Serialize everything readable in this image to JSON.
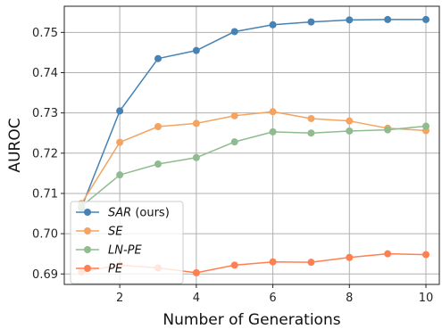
{
  "chart_data": {
    "type": "line",
    "xlabel": "Number of Generations",
    "ylabel": "AUROC",
    "x": [
      1,
      2,
      3,
      4,
      5,
      6,
      7,
      8,
      9,
      10
    ],
    "xlim": [
      0.55,
      10.35
    ],
    "ylim": [
      0.6874,
      0.7565
    ],
    "xticks": [
      2,
      4,
      6,
      8,
      10
    ],
    "yticks": [
      0.69,
      0.7,
      0.71,
      0.72,
      0.73,
      0.74,
      0.75
    ],
    "yticklabels": [
      "0.69",
      "0.70",
      "0.71",
      "0.72",
      "0.73",
      "0.74",
      "0.75"
    ],
    "grid": true,
    "legend_position": "lower-left",
    "series": [
      {
        "name": "SAR",
        "name_suffix": " (ours)",
        "color": "#4682b4",
        "values": [
          0.7065,
          0.7305,
          0.7435,
          0.7455,
          0.7502,
          0.7519,
          0.7526,
          0.7531,
          0.7532,
          0.7532
        ]
      },
      {
        "name": "SE",
        "name_suffix": "",
        "color": "#f4a460",
        "values": [
          0.7075,
          0.7227,
          0.7266,
          0.7274,
          0.7293,
          0.7303,
          0.7286,
          0.728,
          0.7262,
          0.7256
        ]
      },
      {
        "name": "LN-PE",
        "name_suffix": "",
        "color": "#8fbc8f",
        "values": [
          0.7068,
          0.7146,
          0.7173,
          0.7189,
          0.7228,
          0.7253,
          0.725,
          0.7255,
          0.7258,
          0.7267
        ]
      },
      {
        "name": "PE",
        "name_suffix": "",
        "color": "#ff7f50",
        "values": [
          0.6905,
          0.6922,
          0.6915,
          0.6903,
          0.6922,
          0.693,
          0.6929,
          0.6941,
          0.695,
          0.6948
        ]
      }
    ]
  }
}
